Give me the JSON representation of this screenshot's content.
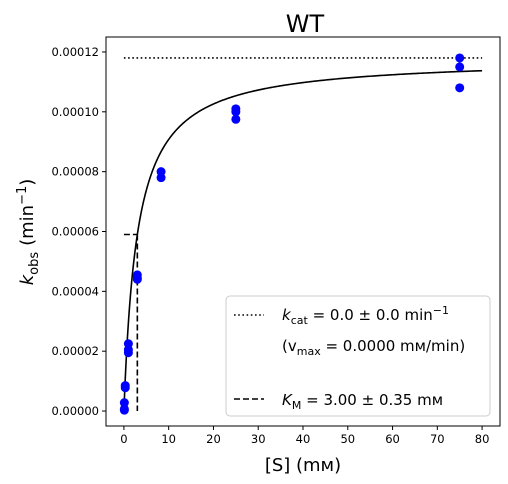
{
  "chart_data": {
    "type": "scatter",
    "title": "WT",
    "xlabel": "[S] (mм)",
    "ylabel_main": "k",
    "ylabel_sub": "obs",
    "ylabel_unit_pre": "(min",
    "ylabel_unit_sup": "−1",
    "ylabel_unit_post": ")",
    "xlim": [
      -4,
      84
    ],
    "ylim": [
      -5e-06,
      0.000125
    ],
    "xticks": [
      0,
      10,
      20,
      30,
      40,
      50,
      60,
      70,
      80
    ],
    "xtick_labels": [
      "0",
      "10",
      "20",
      "30",
      "40",
      "50",
      "60",
      "70",
      "80"
    ],
    "yticks": [
      0,
      2e-05,
      4e-05,
      6e-05,
      8e-05,
      0.0001,
      0.00012
    ],
    "ytick_labels": [
      "0.00000",
      "0.00002",
      "0.00004",
      "0.00006",
      "0.00008",
      "0.00010",
      "0.00012"
    ],
    "points": [
      {
        "x": 0.1,
        "y": 3e-07
      },
      {
        "x": 0.1,
        "y": 2.8e-06
      },
      {
        "x": 0.1,
        "y": 7e-07
      },
      {
        "x": 0.3,
        "y": 8.5e-06
      },
      {
        "x": 0.3,
        "y": 7.8e-06
      },
      {
        "x": 1.0,
        "y": 2.25e-05
      },
      {
        "x": 1.0,
        "y": 2.05e-05
      },
      {
        "x": 1.0,
        "y": 1.95e-05
      },
      {
        "x": 3.0,
        "y": 4.55e-05
      },
      {
        "x": 3.0,
        "y": 4.45e-05
      },
      {
        "x": 3.0,
        "y": 4.4e-05
      },
      {
        "x": 8.3,
        "y": 8e-05
      },
      {
        "x": 8.3,
        "y": 7.8e-05
      },
      {
        "x": 25.0,
        "y": 0.000101
      },
      {
        "x": 25.0,
        "y": 0.0001
      },
      {
        "x": 25.0,
        "y": 9.75e-05
      },
      {
        "x": 75.0,
        "y": 0.000118
      },
      {
        "x": 75.0,
        "y": 0.000115
      },
      {
        "x": 75.0,
        "y": 0.000108
      }
    ],
    "fit": {
      "type": "michaelis-menten",
      "vmax": 0.000118,
      "km": 3.0,
      "x_range": [
        0.05,
        80
      ]
    },
    "vmax_line": {
      "y": 0.000118,
      "x_range": [
        0,
        80
      ]
    },
    "km_marker": {
      "x": 3.0,
      "y": 5.9e-05
    },
    "marker_color": "#0000ff",
    "fit_color": "#000000",
    "legend": {
      "position": "lower-right",
      "entry1_pre": "k",
      "entry1_sub": "cat",
      "entry1_mid": " = 0.0 ± 0.0 min",
      "entry1_sup": "−1",
      "entry2_pre": "(v",
      "entry2_sub": "max",
      "entry2_post": " = 0.0000 mм/min)",
      "entry3_pre": "K",
      "entry3_sub": "M",
      "entry3_post": " = 3.00 ± 0.35 mм"
    }
  }
}
